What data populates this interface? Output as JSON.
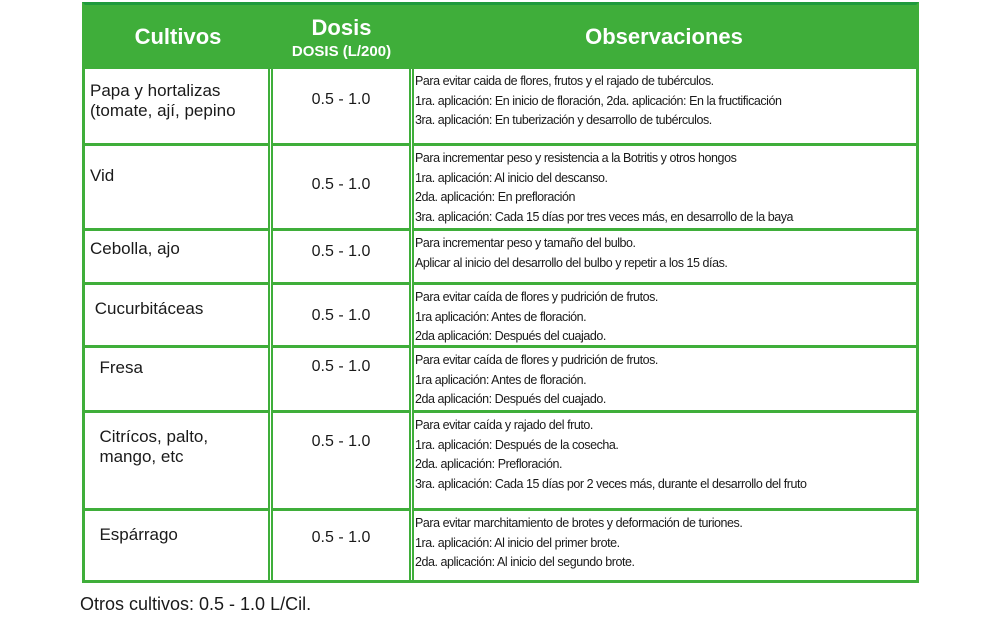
{
  "header": {
    "cultivos": "Cultivos",
    "dosis": "Dosis",
    "dosis_sub": "DOSIS (L/200)",
    "observaciones": "Observaciones"
  },
  "rows": [
    {
      "cultivo": [
        "Papa y hortalizas",
        "(tomate, ají, pepino"
      ],
      "dosis": "0.5 - 1.0",
      "obs": [
        "Para evitar caida de flores, frutos y el rajado de tubérculos.",
        "1ra. aplicación: En inicio de floración, 2da. aplicación: En la fructificación",
        "3ra. aplicación: En tuberización y desarrollo de tubérculos."
      ]
    },
    {
      "cultivo": [
        "Vid"
      ],
      "dosis": "0.5 - 1.0",
      "obs": [
        "Para incrementar peso y resistencia a la Botritis y otros hongos",
        "1ra. aplicación: Al inicio del descanso.",
        "2da. aplicación: En prefloración",
        "3ra. aplicación: Cada 15 días por tres veces más, en desarrollo de la baya"
      ]
    },
    {
      "cultivo": [
        "Cebolla, ajo"
      ],
      "dosis": "0.5 - 1.0",
      "obs": [
        "Para incrementar peso y tamaño del bulbo.",
        "Aplicar al inicio del desarrollo del bulbo y repetir a los 15 días."
      ]
    },
    {
      "cultivo": [
        " Cucurbitáceas"
      ],
      "dosis": "0.5 - 1.0",
      "obs": [
        "Para evitar caída de flores y pudrición de frutos.",
        "1ra aplicación: Antes de floración.",
        "2da aplicación: Después del cuajado."
      ]
    },
    {
      "cultivo": [
        "  Fresa"
      ],
      "dosis": "0.5 - 1.0",
      "obs": [
        "Para evitar caída de flores y pudrición de frutos.",
        "1ra aplicación: Antes de floración.",
        "2da aplicación: Después del cuajado."
      ]
    },
    {
      "cultivo": [
        "  Citrícos, palto,",
        "  mango, etc"
      ],
      "dosis": "0.5 - 1.0",
      "obs": [
        "Para evitar caída y rajado del fruto.",
        "1ra. aplicación: Después de la cosecha.",
        "2da. aplicación: Prefloración.",
        "3ra. aplicación: Cada 15 días por 2 veces más, durante el desarrollo del fruto"
      ]
    },
    {
      "cultivo": [
        "  Espárrago"
      ],
      "dosis": "0.5 - 1.0",
      "obs": [
        "Para evitar marchitamiento de brotes y deformación de turiones.",
        "1ra. aplicación: Al inicio del primer brote.",
        "2da. aplicación: Al inicio del segundo brote."
      ]
    }
  ],
  "footer": "Otros cultivos: 0.5 - 1.0 L/Cil.",
  "colors": {
    "green": "#3fae3a",
    "dark_green": "#1f9a3c"
  }
}
